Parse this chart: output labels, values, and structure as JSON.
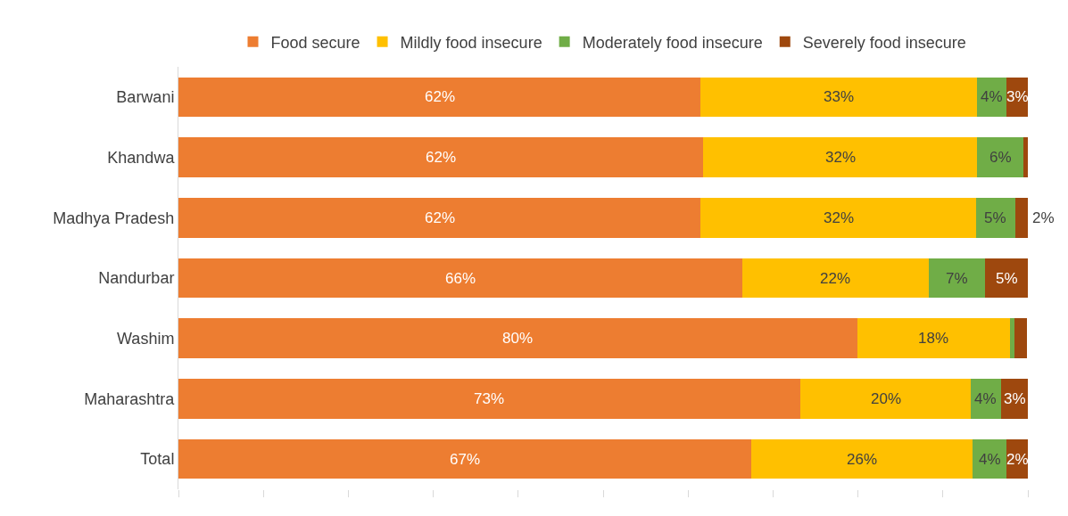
{
  "chart_data": {
    "type": "bar",
    "orientation": "horizontal",
    "stacked": true,
    "legend": "top",
    "categories": [
      "Barwani",
      "Khandwa",
      "Madhya Pradesh",
      "Nandurbar",
      "Washim",
      "Maharashtra",
      "Total"
    ],
    "xlim": [
      0,
      100
    ],
    "xticks": [
      {
        "value": 0,
        "label": null
      },
      {
        "value": 10,
        "label": null
      },
      {
        "value": 20,
        "label": null
      },
      {
        "value": 30,
        "label": null
      },
      {
        "value": 40,
        "label": null
      },
      {
        "value": 50,
        "label": null
      },
      {
        "value": 60,
        "label": null
      },
      {
        "value": 70,
        "label": null
      },
      {
        "value": 80,
        "label": null
      },
      {
        "value": 90,
        "label": null
      },
      {
        "value": 100,
        "label": null
      }
    ],
    "series": [
      {
        "name": "Food secure",
        "color": "#ed7d31",
        "values": [
          61.5,
          61.8,
          61.5,
          66.4,
          79.9,
          73.2,
          67.4
        ],
        "value_labels": [
          "62%",
          "62%",
          "62%",
          "66%",
          "80%",
          "73%",
          "67%"
        ]
      },
      {
        "name": "Mildly food insecure",
        "color": "#ffc000",
        "values": [
          32.5,
          32.2,
          32.4,
          21.9,
          18.0,
          20.1,
          26.1
        ],
        "value_labels": [
          "33%",
          "32%",
          "32%",
          "22%",
          "18%",
          "20%",
          "26%"
        ]
      },
      {
        "name": "Moderately food insecure",
        "color": "#70ad47",
        "values": [
          3.5,
          5.5,
          4.6,
          6.7,
          0.5,
          3.5,
          4.0
        ],
        "value_labels": [
          "4%",
          "6%",
          "5%",
          "7%",
          null,
          "4%",
          "4%"
        ]
      },
      {
        "name": "Severely food insecure",
        "color": "#9e480e",
        "values": [
          2.6,
          0.5,
          1.6,
          5.0,
          1.5,
          3.3,
          2.5
        ],
        "value_labels": [
          "3%",
          null,
          "2%",
          "5%",
          null,
          "3%",
          "2%"
        ]
      }
    ]
  }
}
